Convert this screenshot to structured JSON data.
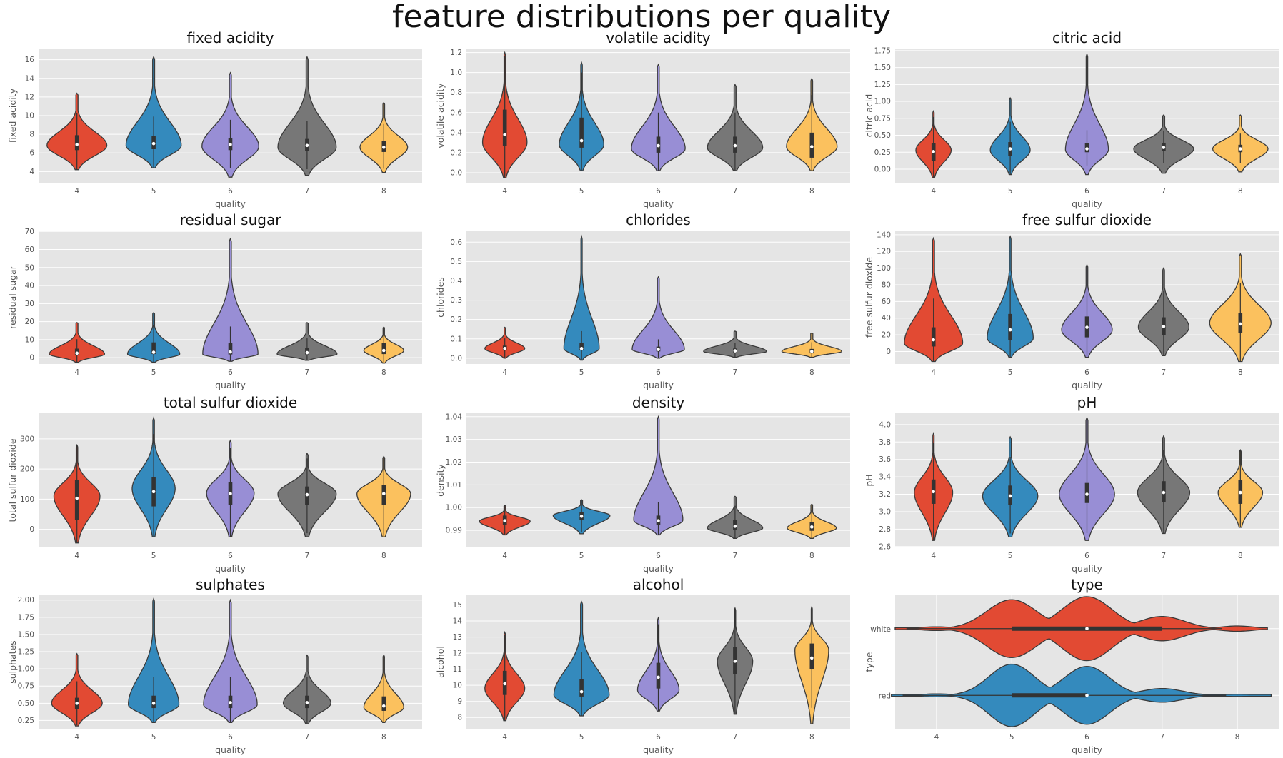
{
  "figure": {
    "suptitle": "feature distributions per quality"
  },
  "colors": {
    "q4": "#e24a33",
    "q5": "#348abd",
    "q6": "#988ed5",
    "q7": "#777777",
    "q8": "#fbc15e",
    "panel_bg": "#e5e5e5",
    "grid": "#ffffff",
    "outline": "#3a3a3a"
  },
  "chart_data": [
    {
      "type": "violin",
      "title": "fixed acidity",
      "xlabel": "quality",
      "ylabel": "fixed acidity",
      "categories": [
        "4",
        "5",
        "6",
        "7",
        "8"
      ],
      "ylim": [
        2.8,
        17.2
      ],
      "yticks": [
        4,
        6,
        8,
        10,
        12,
        14,
        16
      ],
      "yticklabels": [
        "4",
        "6",
        "8",
        "10",
        "12",
        "14",
        "16"
      ],
      "series": [
        {
          "name": "4",
          "min": 4.2,
          "max": 12.4,
          "q1": 6.3,
          "median": 6.9,
          "q3": 7.9,
          "mode": 6.8,
          "width": 0.78
        },
        {
          "name": "5",
          "min": 4.4,
          "max": 16.3,
          "q1": 6.4,
          "median": 7.0,
          "q3": 7.8,
          "mode": 6.8,
          "width": 0.72
        },
        {
          "name": "6",
          "min": 3.4,
          "max": 14.6,
          "q1": 6.3,
          "median": 6.9,
          "q3": 7.6,
          "mode": 6.7,
          "width": 0.74
        },
        {
          "name": "7",
          "min": 3.6,
          "max": 16.3,
          "q1": 6.2,
          "median": 6.8,
          "q3": 7.5,
          "mode": 6.6,
          "width": 0.76
        },
        {
          "name": "8",
          "min": 3.9,
          "max": 11.4,
          "q1": 6.1,
          "median": 6.6,
          "q3": 7.3,
          "mode": 6.6,
          "width": 0.62
        }
      ]
    },
    {
      "type": "violin",
      "title": "volatile acidity",
      "xlabel": "quality",
      "ylabel": "volatile acidity",
      "categories": [
        "4",
        "5",
        "6",
        "7",
        "8"
      ],
      "ylim": [
        -0.1,
        1.24
      ],
      "yticks": [
        0.0,
        0.2,
        0.4,
        0.6,
        0.8,
        1.0,
        1.2
      ],
      "yticklabels": [
        "0.0",
        "0.2",
        "0.4",
        "0.6",
        "0.8",
        "1.0",
        "1.2"
      ],
      "series": [
        {
          "name": "4",
          "min": -0.05,
          "max": 1.2,
          "q1": 0.27,
          "median": 0.38,
          "q3": 0.63,
          "mode": 0.3,
          "width": 0.58
        },
        {
          "name": "5",
          "min": 0.02,
          "max": 1.1,
          "q1": 0.25,
          "median": 0.32,
          "q3": 0.55,
          "mode": 0.28,
          "width": 0.58
        },
        {
          "name": "6",
          "min": 0.02,
          "max": 1.08,
          "q1": 0.2,
          "median": 0.27,
          "q3": 0.36,
          "mode": 0.24,
          "width": 0.7
        },
        {
          "name": "7",
          "min": 0.02,
          "max": 0.88,
          "q1": 0.2,
          "median": 0.27,
          "q3": 0.36,
          "mode": 0.25,
          "width": 0.72
        },
        {
          "name": "8",
          "min": 0.02,
          "max": 0.94,
          "q1": 0.15,
          "median": 0.26,
          "q3": 0.4,
          "mode": 0.26,
          "width": 0.66
        }
      ]
    },
    {
      "type": "violin",
      "title": "citric acid",
      "xlabel": "quality",
      "ylabel": "citric acid",
      "categories": [
        "4",
        "5",
        "6",
        "7",
        "8"
      ],
      "ylim": [
        -0.2,
        1.78
      ],
      "yticks": [
        0.0,
        0.25,
        0.5,
        0.75,
        1.0,
        1.25,
        1.5,
        1.75
      ],
      "yticklabels": [
        "0.00",
        "0.25",
        "0.50",
        "0.75",
        "1.00",
        "1.25",
        "1.50",
        "1.75"
      ],
      "series": [
        {
          "name": "4",
          "min": -0.13,
          "max": 0.86,
          "q1": 0.12,
          "median": 0.26,
          "q3": 0.38,
          "mode": 0.28,
          "width": 0.46
        },
        {
          "name": "5",
          "min": -0.08,
          "max": 1.05,
          "q1": 0.2,
          "median": 0.3,
          "q3": 0.4,
          "mode": 0.28,
          "width": 0.52
        },
        {
          "name": "6",
          "min": -0.08,
          "max": 1.7,
          "q1": 0.25,
          "median": 0.3,
          "q3": 0.38,
          "mode": 0.29,
          "width": 0.56
        },
        {
          "name": "7",
          "min": -0.06,
          "max": 0.8,
          "q1": 0.27,
          "median": 0.32,
          "q3": 0.39,
          "mode": 0.3,
          "width": 0.78
        },
        {
          "name": "8",
          "min": -0.04,
          "max": 0.8,
          "q1": 0.25,
          "median": 0.3,
          "q3": 0.36,
          "mode": 0.3,
          "width": 0.72
        }
      ]
    },
    {
      "type": "violin",
      "title": "residual sugar",
      "xlabel": "quality",
      "ylabel": "residual sugar",
      "categories": [
        "4",
        "5",
        "6",
        "7",
        "8"
      ],
      "ylim": [
        -3.5,
        70.5
      ],
      "yticks": [
        0,
        10,
        20,
        30,
        40,
        50,
        60,
        70
      ],
      "yticklabels": [
        "0",
        "10",
        "20",
        "30",
        "40",
        "50",
        "60",
        "70"
      ],
      "series": [
        {
          "name": "4",
          "min": -2.5,
          "max": 19.5,
          "q1": 1.5,
          "median": 2.5,
          "q3": 5.0,
          "mode": 2.0,
          "width": 0.72
        },
        {
          "name": "5",
          "min": -2.5,
          "max": 25.0,
          "q1": 2.0,
          "median": 3.0,
          "q3": 8.5,
          "mode": 2.0,
          "width": 0.68
        },
        {
          "name": "6",
          "min": -2.0,
          "max": 66.0,
          "q1": 1.8,
          "median": 3.2,
          "q3": 8.0,
          "mode": 2.0,
          "width": 0.72
        },
        {
          "name": "7",
          "min": -1.5,
          "max": 19.5,
          "q1": 1.8,
          "median": 2.8,
          "q3": 5.5,
          "mode": 2.0,
          "width": 0.78
        },
        {
          "name": "8",
          "min": -3.0,
          "max": 17.0,
          "q1": 2.0,
          "median": 4.0,
          "q3": 8.0,
          "mode": 4.0,
          "width": 0.52
        }
      ]
    },
    {
      "type": "violin",
      "title": "chlorides",
      "xlabel": "quality",
      "ylabel": "chlorides",
      "categories": [
        "4",
        "5",
        "6",
        "7",
        "8"
      ],
      "ylim": [
        -0.03,
        0.66
      ],
      "yticks": [
        0.0,
        0.1,
        0.2,
        0.3,
        0.4,
        0.5,
        0.6
      ],
      "yticklabels": [
        "0.0",
        "0.1",
        "0.2",
        "0.3",
        "0.4",
        "0.5",
        "0.6"
      ],
      "series": [
        {
          "name": "4",
          "min": 0.0,
          "max": 0.16,
          "q1": 0.04,
          "median": 0.05,
          "q3": 0.065,
          "mode": 0.05,
          "width": 0.52
        },
        {
          "name": "5",
          "min": -0.01,
          "max": 0.63,
          "q1": 0.04,
          "median": 0.05,
          "q3": 0.08,
          "mode": 0.05,
          "width": 0.46
        },
        {
          "name": "6",
          "min": 0.0,
          "max": 0.42,
          "q1": 0.035,
          "median": 0.045,
          "q3": 0.06,
          "mode": 0.045,
          "width": 0.68
        },
        {
          "name": "7",
          "min": 0.005,
          "max": 0.14,
          "q1": 0.03,
          "median": 0.038,
          "q3": 0.05,
          "mode": 0.035,
          "width": 0.82
        },
        {
          "name": "8",
          "min": 0.005,
          "max": 0.13,
          "q1": 0.025,
          "median": 0.035,
          "q3": 0.048,
          "mode": 0.035,
          "width": 0.78
        }
      ]
    },
    {
      "type": "violin",
      "title": "free sulfur dioxide",
      "xlabel": "quality",
      "ylabel": "free sulfur dioxide",
      "categories": [
        "4",
        "5",
        "6",
        "7",
        "8"
      ],
      "ylim": [
        -15,
        145
      ],
      "yticks": [
        0,
        20,
        40,
        60,
        80,
        100,
        120,
        140
      ],
      "yticklabels": [
        "0",
        "20",
        "40",
        "60",
        "80",
        "100",
        "120",
        "140"
      ],
      "series": [
        {
          "name": "4",
          "min": -12,
          "max": 136,
          "q1": 6,
          "median": 14,
          "q3": 29,
          "mode": 10,
          "width": 0.76
        },
        {
          "name": "5",
          "min": -7,
          "max": 138,
          "q1": 14,
          "median": 26,
          "q3": 45,
          "mode": 16,
          "width": 0.6
        },
        {
          "name": "6",
          "min": -7,
          "max": 104,
          "q1": 17,
          "median": 29,
          "q3": 42,
          "mode": 26,
          "width": 0.66
        },
        {
          "name": "7",
          "min": -5,
          "max": 100,
          "q1": 20,
          "median": 30,
          "q3": 41,
          "mode": 29,
          "width": 0.66
        },
        {
          "name": "8",
          "min": -12,
          "max": 117,
          "q1": 22,
          "median": 33,
          "q3": 46,
          "mode": 34,
          "width": 0.8
        }
      ]
    },
    {
      "type": "violin",
      "title": "total sulfur dioxide",
      "xlabel": "quality",
      "ylabel": "total sulfur dioxide",
      "categories": [
        "4",
        "5",
        "6",
        "7",
        "8"
      ],
      "ylim": [
        -60,
        385
      ],
      "yticks": [
        0,
        100,
        200,
        300
      ],
      "yticklabels": [
        "0",
        "100",
        "200",
        "300"
      ],
      "series": [
        {
          "name": "4",
          "min": -45,
          "max": 280,
          "q1": 30,
          "median": 103,
          "q3": 163,
          "mode": 110,
          "width": 0.6
        },
        {
          "name": "5",
          "min": -25,
          "max": 370,
          "q1": 76,
          "median": 125,
          "q3": 172,
          "mode": 135,
          "width": 0.56
        },
        {
          "name": "6",
          "min": -25,
          "max": 295,
          "q1": 80,
          "median": 118,
          "q3": 156,
          "mode": 120,
          "width": 0.62
        },
        {
          "name": "7",
          "min": -25,
          "max": 252,
          "q1": 80,
          "median": 115,
          "q3": 142,
          "mode": 118,
          "width": 0.76
        },
        {
          "name": "8",
          "min": -25,
          "max": 242,
          "q1": 80,
          "median": 118,
          "q3": 148,
          "mode": 118,
          "width": 0.7
        }
      ]
    },
    {
      "type": "violin",
      "title": "density",
      "xlabel": "quality",
      "ylabel": "density",
      "categories": [
        "4",
        "5",
        "6",
        "7",
        "8"
      ],
      "ylim": [
        0.9825,
        1.0415
      ],
      "yticks": [
        0.99,
        1.0,
        1.01,
        1.02,
        1.03,
        1.04
      ],
      "yticklabels": [
        "0.99",
        "1.00",
        "1.01",
        "1.02",
        "1.03",
        "1.04"
      ],
      "series": [
        {
          "name": "4",
          "min": 0.988,
          "max": 1.001,
          "q1": 0.9925,
          "median": 0.9942,
          "q3": 0.9965,
          "mode": 0.994,
          "width": 0.66
        },
        {
          "name": "5",
          "min": 0.9885,
          "max": 1.0035,
          "q1": 0.9945,
          "median": 0.9962,
          "q3": 0.998,
          "mode": 0.9965,
          "width": 0.74
        },
        {
          "name": "6",
          "min": 0.988,
          "max": 1.04,
          "q1": 0.9925,
          "median": 0.9942,
          "q3": 0.9965,
          "mode": 0.9945,
          "width": 0.64
        },
        {
          "name": "7",
          "min": 0.9865,
          "max": 1.005,
          "q1": 0.9903,
          "median": 0.9918,
          "q3": 0.9945,
          "mode": 0.991,
          "width": 0.72
        },
        {
          "name": "8",
          "min": 0.9865,
          "max": 1.0015,
          "q1": 0.9898,
          "median": 0.9915,
          "q3": 0.9935,
          "mode": 0.991,
          "width": 0.64
        }
      ]
    },
    {
      "type": "violin",
      "title": "pH",
      "xlabel": "quality",
      "ylabel": "pH",
      "categories": [
        "4",
        "5",
        "6",
        "7",
        "8"
      ],
      "ylim": [
        2.59,
        4.13
      ],
      "yticks": [
        2.6,
        2.8,
        3.0,
        3.2,
        3.4,
        3.6,
        3.8,
        4.0
      ],
      "yticklabels": [
        "2.6",
        "2.8",
        "3.0",
        "3.2",
        "3.4",
        "3.6",
        "3.8",
        "4.0"
      ],
      "series": [
        {
          "name": "4",
          "min": 2.67,
          "max": 3.9,
          "q1": 3.09,
          "median": 3.23,
          "q3": 3.37,
          "mode": 3.22,
          "width": 0.5
        },
        {
          "name": "5",
          "min": 2.71,
          "max": 3.86,
          "q1": 3.08,
          "median": 3.18,
          "q3": 3.3,
          "mode": 3.18,
          "width": 0.72
        },
        {
          "name": "6",
          "min": 2.67,
          "max": 4.08,
          "q1": 3.1,
          "median": 3.2,
          "q3": 3.33,
          "mode": 3.2,
          "width": 0.72
        },
        {
          "name": "7",
          "min": 2.75,
          "max": 3.87,
          "q1": 3.11,
          "median": 3.22,
          "q3": 3.35,
          "mode": 3.22,
          "width": 0.68
        },
        {
          "name": "8",
          "min": 2.82,
          "max": 3.71,
          "q1": 3.09,
          "median": 3.22,
          "q3": 3.36,
          "mode": 3.22,
          "width": 0.58
        }
      ]
    },
    {
      "type": "violin",
      "title": "sulphates",
      "xlabel": "quality",
      "ylabel": "sulphates",
      "categories": [
        "4",
        "5",
        "6",
        "7",
        "8"
      ],
      "ylim": [
        0.13,
        2.07
      ],
      "yticks": [
        0.25,
        0.5,
        0.75,
        1.0,
        1.25,
        1.5,
        1.75,
        2.0
      ],
      "yticklabels": [
        "0.25",
        "0.50",
        "0.75",
        "1.00",
        "1.25",
        "1.50",
        "1.75",
        "2.00"
      ],
      "series": [
        {
          "name": "4",
          "min": 0.17,
          "max": 1.22,
          "q1": 0.42,
          "median": 0.5,
          "q3": 0.58,
          "mode": 0.5,
          "width": 0.66
        },
        {
          "name": "5",
          "min": 0.22,
          "max": 2.02,
          "q1": 0.43,
          "median": 0.5,
          "q3": 0.61,
          "mode": 0.48,
          "width": 0.66
        },
        {
          "name": "6",
          "min": 0.22,
          "max": 2.0,
          "q1": 0.43,
          "median": 0.51,
          "q3": 0.61,
          "mode": 0.48,
          "width": 0.7
        },
        {
          "name": "7",
          "min": 0.2,
          "max": 1.2,
          "q1": 0.43,
          "median": 0.51,
          "q3": 0.61,
          "mode": 0.5,
          "width": 0.62
        },
        {
          "name": "8",
          "min": 0.22,
          "max": 1.2,
          "q1": 0.39,
          "median": 0.46,
          "q3": 0.6,
          "mode": 0.44,
          "width": 0.52
        }
      ]
    },
    {
      "type": "violin",
      "title": "alcohol",
      "xlabel": "quality",
      "ylabel": "alcohol",
      "categories": [
        "4",
        "5",
        "6",
        "7",
        "8"
      ],
      "ylim": [
        7.3,
        15.6
      ],
      "yticks": [
        8,
        9,
        10,
        11,
        12,
        13,
        14,
        15
      ],
      "yticklabels": [
        "8",
        "9",
        "10",
        "11",
        "12",
        "13",
        "14",
        "15"
      ],
      "series": [
        {
          "name": "4",
          "min": 7.8,
          "max": 13.3,
          "q1": 9.4,
          "median": 10.1,
          "q3": 10.9,
          "mode": 9.8,
          "width": 0.52
        },
        {
          "name": "5",
          "min": 8.1,
          "max": 15.2,
          "q1": 9.3,
          "median": 9.6,
          "q3": 10.4,
          "mode": 9.4,
          "width": 0.72
        },
        {
          "name": "6",
          "min": 8.4,
          "max": 14.2,
          "q1": 9.8,
          "median": 10.5,
          "q3": 11.4,
          "mode": 9.7,
          "width": 0.54
        },
        {
          "name": "7",
          "min": 8.2,
          "max": 14.8,
          "q1": 10.7,
          "median": 11.5,
          "q3": 12.4,
          "mode": 11.5,
          "width": 0.46
        },
        {
          "name": "8",
          "min": 7.6,
          "max": 14.9,
          "q1": 11.0,
          "median": 11.7,
          "q3": 12.6,
          "mode": 12.2,
          "width": 0.44
        }
      ]
    },
    {
      "type": "violin",
      "orientation": "horizontal",
      "title": "type",
      "xlabel": "quality",
      "ylabel": "type",
      "categories": [
        "white",
        "red"
      ],
      "xlim": [
        3.45,
        8.55
      ],
      "xticks": [
        4,
        5,
        6,
        7,
        8
      ],
      "xticklabels": [
        "4",
        "5",
        "6",
        "7",
        "8"
      ],
      "series": [
        {
          "name": "white",
          "color": "q4",
          "min": 3.45,
          "max": 8.4,
          "q1": 5.0,
          "median": 6.0,
          "q3": 7.0,
          "bumps": [
            [
              4.0,
              0.025,
              0.22
            ],
            [
              5.0,
              0.38,
              0.33
            ],
            [
              6.0,
              0.42,
              0.33
            ],
            [
              7.0,
              0.16,
              0.3
            ],
            [
              8.0,
              0.035,
              0.22
            ]
          ]
        },
        {
          "name": "red",
          "color": "q5",
          "min": 3.4,
          "max": 8.45,
          "q1": 5.0,
          "median": 6.0,
          "q3": 6.0,
          "bumps": [
            [
              4.0,
              0.02,
              0.22
            ],
            [
              5.0,
              0.41,
              0.3
            ],
            [
              6.0,
              0.38,
              0.3
            ],
            [
              7.0,
              0.09,
              0.28
            ],
            [
              8.0,
              0.015,
              0.22
            ]
          ]
        }
      ]
    }
  ]
}
